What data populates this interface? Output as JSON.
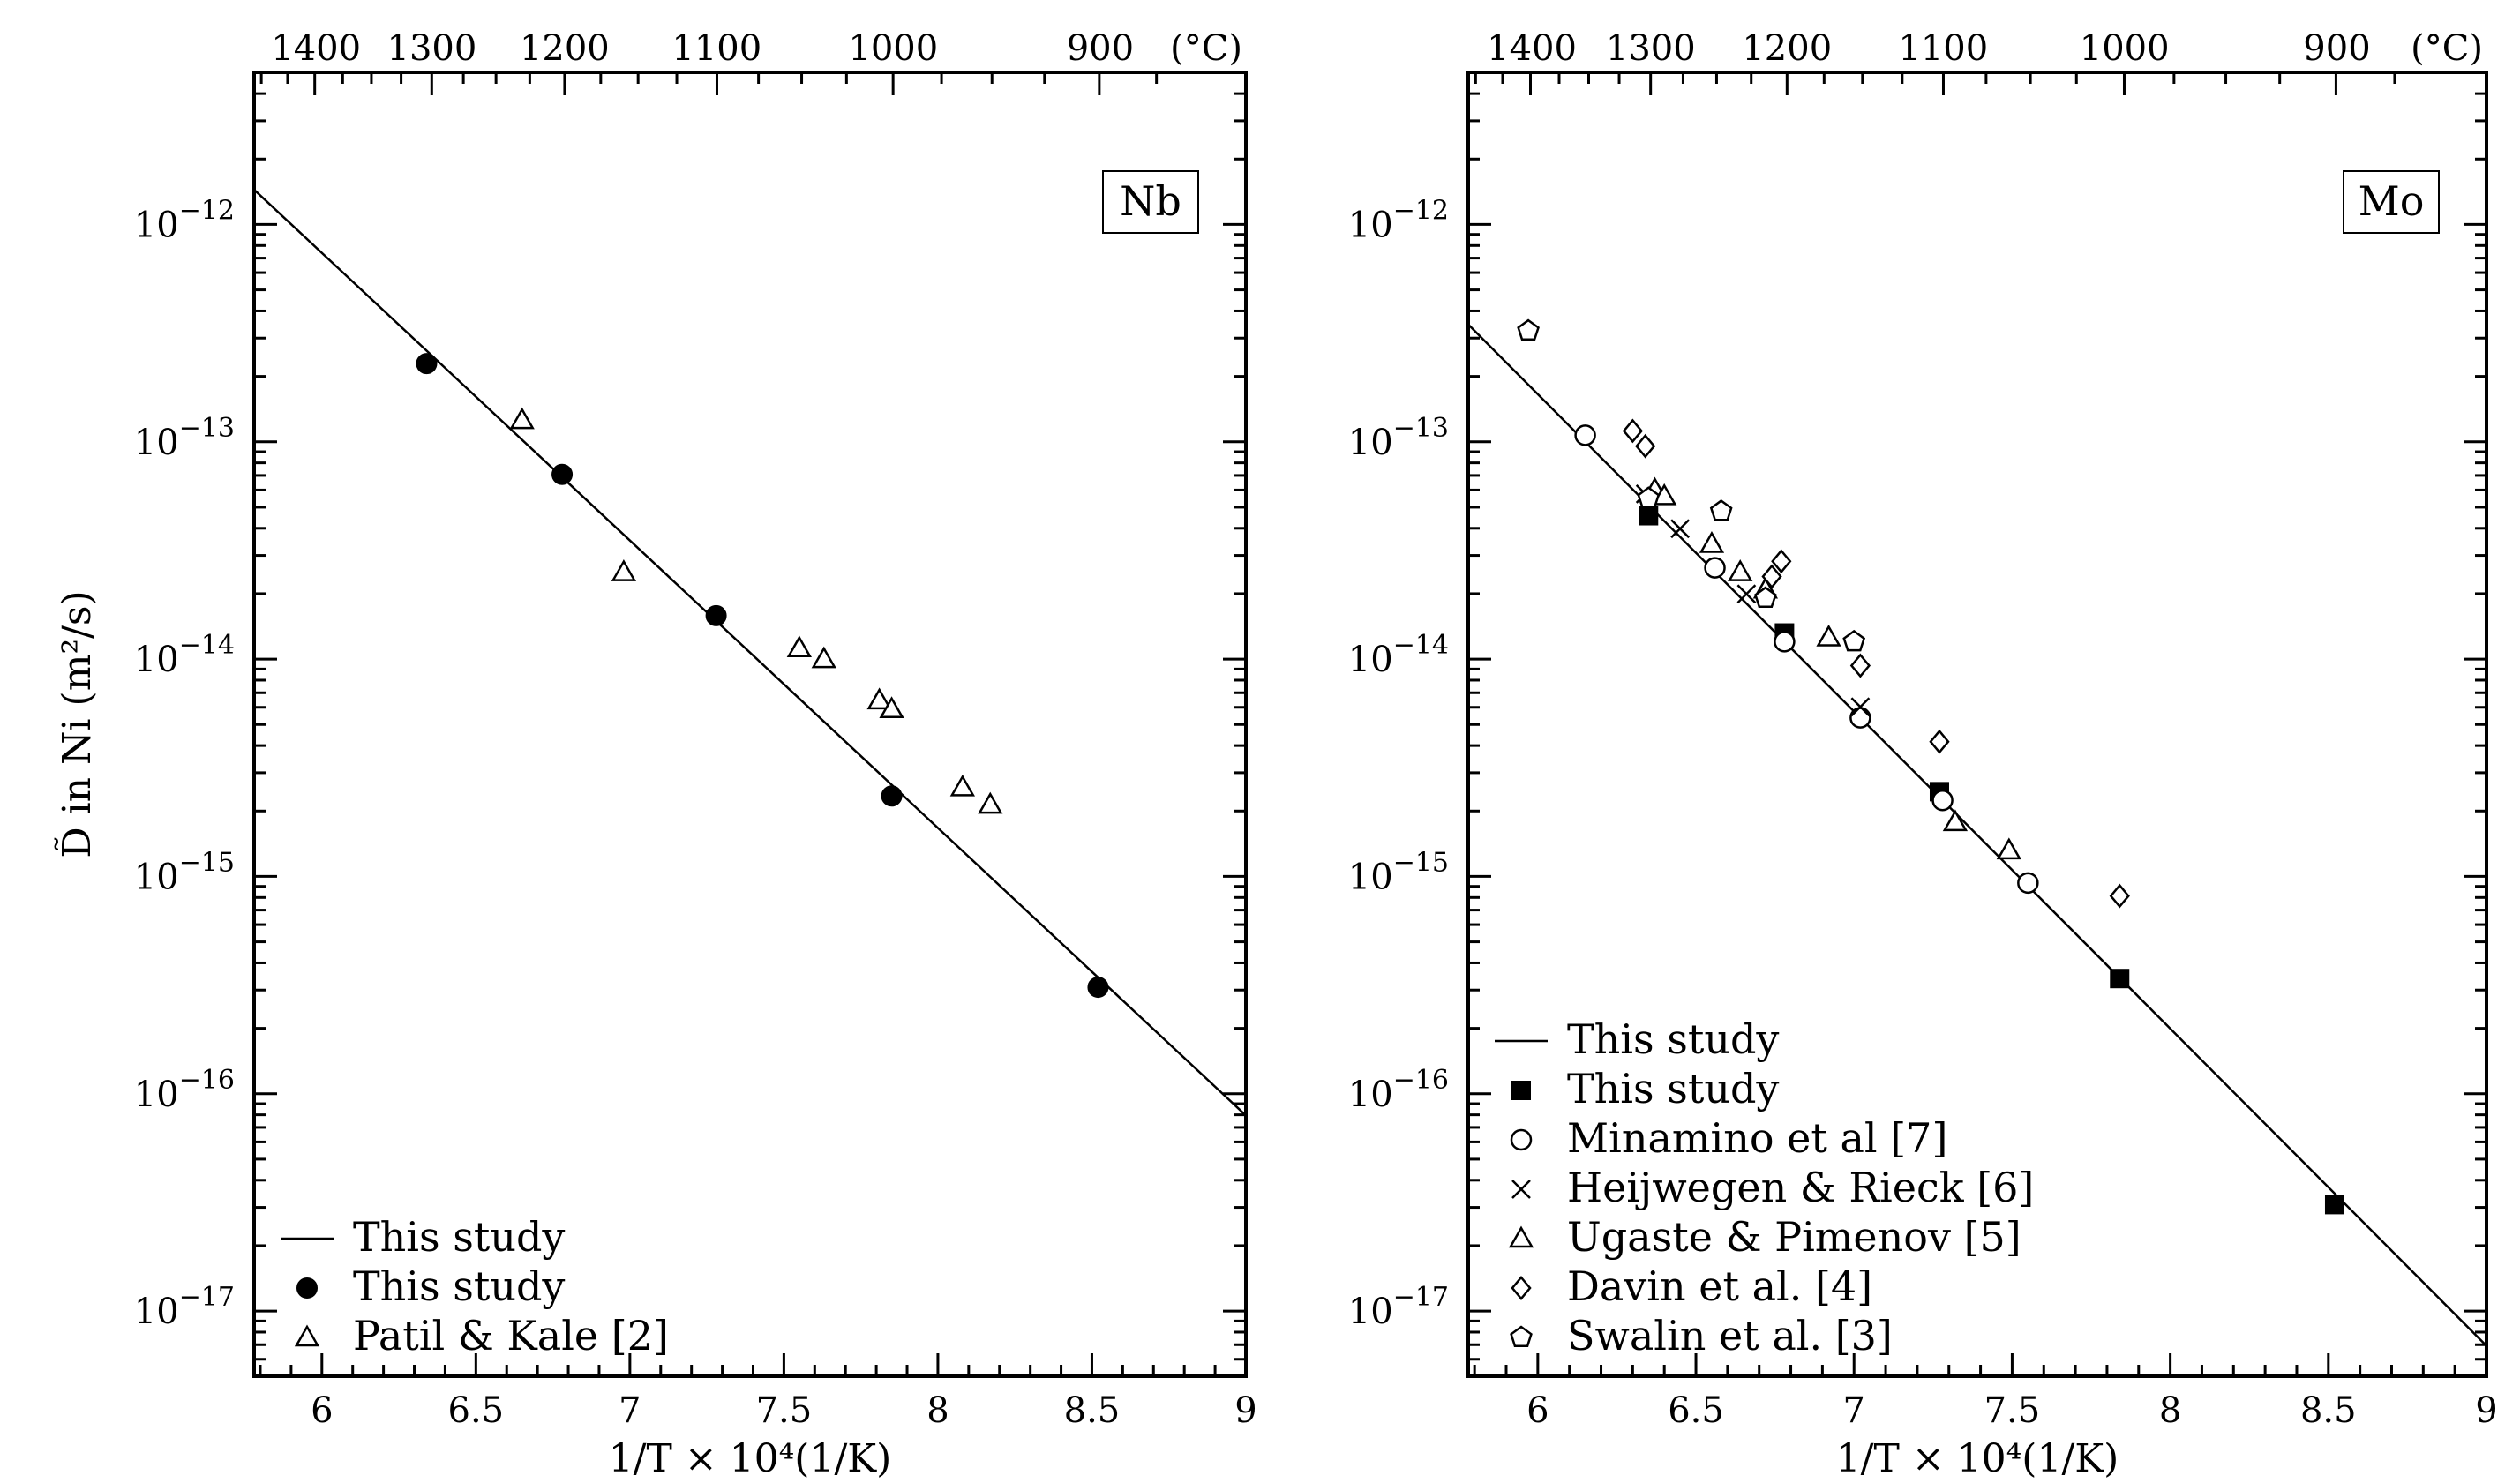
{
  "chart_data": [
    {
      "type": "scatter",
      "panel_label": "Nb",
      "xlabel": "1/T × 10⁴(1/K)",
      "ylabel": "D̃ in Ni (m²/s)",
      "xlim": [
        5.78,
        9.0
      ],
      "ylim_log10": [
        -17.3,
        -11.3
      ],
      "x_ticks": [
        6,
        6.5,
        7,
        7.5,
        8,
        8.5,
        9
      ],
      "x_tick_labels": [
        "6",
        "6.5",
        "7",
        "7.5",
        "8",
        "8.5",
        "9"
      ],
      "y_ticks_log10": [
        -12,
        -13,
        -14,
        -15,
        -16,
        -17
      ],
      "y_tick_labels": [
        "10",
        "10",
        "10",
        "10",
        "10",
        "10"
      ],
      "y_tick_exponents": [
        "−12",
        "−13",
        "−14",
        "−15",
        "−16",
        "−17"
      ],
      "top_axis_unit": "(°C)",
      "top_ticks": [
        {
          "x": 5.981,
          "label": "1400"
        },
        {
          "x": 6.357,
          "label": "1300"
        },
        {
          "x": 6.788,
          "label": "1200"
        },
        {
          "x": 7.282,
          "label": "1100"
        },
        {
          "x": 7.855,
          "label": "1000"
        },
        {
          "x": 8.527,
          "label": "900"
        }
      ],
      "fit": {
        "x": [
          5.78,
          9.0
        ],
        "log10_y": [
          -11.84,
          -16.1
        ]
      },
      "series": [
        {
          "name": "This study",
          "marker": "line",
          "x": [],
          "log10_y": []
        },
        {
          "name": "This study",
          "marker": "filled-circle",
          "x": [
            6.34,
            6.78,
            7.28,
            7.85,
            8.52
          ],
          "log10_y": [
            -12.64,
            -13.15,
            -13.8,
            -14.63,
            -15.51
          ]
        },
        {
          "name": "Patil & Kale [2]",
          "marker": "open-triangle",
          "x": [
            6.65,
            6.98,
            7.55,
            7.63,
            7.81,
            7.85,
            8.08,
            8.17
          ],
          "log10_y": [
            -12.9,
            -13.6,
            -13.95,
            -14.0,
            -14.19,
            -14.23,
            -14.59,
            -14.67
          ]
        }
      ],
      "legend": {
        "placement": "bottom-left"
      }
    },
    {
      "type": "scatter",
      "panel_label": "Mo",
      "xlabel": "1/T × 10⁴(1/K)",
      "xlim": [
        5.78,
        9.0
      ],
      "ylim_log10": [
        -17.3,
        -11.3
      ],
      "x_ticks": [
        6,
        6.5,
        7,
        7.5,
        8,
        8.5,
        9
      ],
      "x_tick_labels": [
        "6",
        "6.5",
        "7",
        "7.5",
        "8",
        "8.5",
        "9"
      ],
      "y_ticks_log10": [
        -12,
        -13,
        -14,
        -15,
        -16,
        -17
      ],
      "y_tick_labels": [
        "10",
        "10",
        "10",
        "10",
        "10",
        "10"
      ],
      "y_tick_exponents": [
        "−12",
        "−13",
        "−14",
        "−15",
        "−16",
        "−17"
      ],
      "top_axis_unit": "(°C)",
      "top_ticks": [
        {
          "x": 5.981,
          "label": "1400"
        },
        {
          "x": 6.357,
          "label": "1300"
        },
        {
          "x": 6.788,
          "label": "1200"
        },
        {
          "x": 7.282,
          "label": "1100"
        },
        {
          "x": 7.855,
          "label": "1000"
        },
        {
          "x": 8.527,
          "label": "900"
        }
      ],
      "fit": {
        "x": [
          5.78,
          9.0
        ],
        "log10_y": [
          -12.46,
          -17.16
        ]
      },
      "series": [
        {
          "name": "This study",
          "marker": "line",
          "x": [],
          "log10_y": []
        },
        {
          "name": "This study",
          "marker": "filled-square",
          "x": [
            6.35,
            6.78,
            7.27,
            7.84,
            8.52
          ],
          "log10_y": [
            -13.34,
            -13.88,
            -14.61,
            -15.47,
            -16.51
          ]
        },
        {
          "name": "Minamino et al [7]",
          "marker": "open-circle",
          "x": [
            6.15,
            6.56,
            6.78,
            7.02,
            7.28,
            7.55
          ],
          "log10_y": [
            -12.97,
            -13.58,
            -13.92,
            -14.27,
            -14.65,
            -15.03
          ]
        },
        {
          "name": "Heijwegen & Rieck [6]",
          "marker": "cross",
          "x": [
            6.34,
            6.45,
            6.66,
            7.02
          ],
          "log10_y": [
            -13.24,
            -13.4,
            -13.7,
            -14.22
          ]
        },
        {
          "name": "Ugaste & Pimenov [5]",
          "marker": "open-triangle",
          "x": [
            6.37,
            6.4,
            6.55,
            6.64,
            6.72,
            6.92,
            7.32,
            7.49
          ],
          "log10_y": [
            -13.22,
            -13.25,
            -13.47,
            -13.6,
            -13.68,
            -13.9,
            -14.75,
            -14.88
          ]
        },
        {
          "name": "Davin et al. [4]",
          "marker": "open-diamond",
          "x": [
            6.3,
            6.34,
            6.74,
            6.77,
            7.02,
            7.27,
            7.84
          ],
          "log10_y": [
            -12.95,
            -13.02,
            -13.62,
            -13.55,
            -14.03,
            -14.38,
            -15.09
          ]
        },
        {
          "name": "Swalin et al. [3]",
          "marker": "open-pentagon",
          "x": [
            5.97,
            6.35,
            6.58,
            6.72,
            7.0
          ],
          "log10_y": [
            -12.49,
            -13.26,
            -13.32,
            -13.72,
            -13.92
          ]
        }
      ],
      "legend": {
        "placement": "bottom-left"
      }
    }
  ]
}
